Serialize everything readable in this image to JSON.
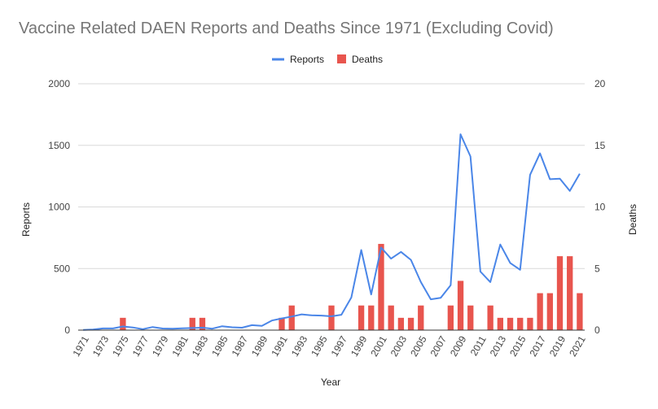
{
  "chart_data": {
    "type": "bar",
    "title": "Vaccine Related DAEN Reports and Deaths Since 1971 (Excluding Covid)",
    "xlabel": "Year",
    "ylabel_left": "Reports",
    "ylabel_right": "Deaths",
    "x_tick_labels": [
      "1971",
      "1973",
      "1975",
      "1977",
      "1979",
      "1981",
      "1983",
      "1985",
      "1987",
      "1989",
      "1991",
      "1993",
      "1995",
      "1997",
      "1999",
      "2001",
      "2003",
      "2005",
      "2007",
      "2009",
      "2011",
      "2013",
      "2015",
      "2017",
      "2019",
      "2021"
    ],
    "y_left": {
      "lim": [
        0,
        2000
      ],
      "ticks": [
        0,
        500,
        1000,
        1500,
        2000
      ]
    },
    "y_right": {
      "lim": [
        0,
        20
      ],
      "ticks": [
        0,
        5,
        10,
        15,
        20
      ]
    },
    "grid": true,
    "legend_position": "top",
    "categories": [
      1971,
      1972,
      1973,
      1974,
      1975,
      1976,
      1977,
      1978,
      1979,
      1980,
      1981,
      1982,
      1983,
      1984,
      1985,
      1986,
      1987,
      1988,
      1989,
      1990,
      1991,
      1992,
      1993,
      1994,
      1995,
      1996,
      1997,
      1998,
      1999,
      2000,
      2001,
      2002,
      2003,
      2004,
      2005,
      2006,
      2007,
      2008,
      2009,
      2010,
      2011,
      2012,
      2013,
      2014,
      2015,
      2016,
      2017,
      2018,
      2019,
      2020,
      2021
    ],
    "series": [
      {
        "name": "Reports",
        "kind": "line",
        "axis": "left",
        "color": "#4a86e8",
        "values": [
          2,
          5,
          14,
          14,
          30,
          22,
          8,
          25,
          13,
          12,
          15,
          17,
          20,
          12,
          32,
          23,
          20,
          40,
          35,
          78,
          95,
          110,
          128,
          120,
          118,
          112,
          125,
          265,
          650,
          290,
          670,
          580,
          635,
          570,
          390,
          250,
          262,
          365,
          1590,
          1410,
          475,
          390,
          695,
          545,
          490,
          1260,
          1435,
          1225,
          1230,
          1130,
          1270
        ]
      },
      {
        "name": "Deaths",
        "kind": "bar",
        "axis": "right",
        "color": "#e8554e",
        "values": [
          0,
          0,
          0,
          0,
          1,
          0,
          0,
          0,
          0,
          0,
          0,
          1,
          1,
          0,
          0,
          0,
          0,
          0,
          0,
          0,
          1,
          2,
          0,
          0,
          0,
          2,
          0,
          0,
          2,
          2,
          7,
          2,
          1,
          1,
          2,
          0,
          0,
          2,
          4,
          2,
          0,
          2,
          1,
          1,
          1,
          1,
          3,
          3,
          6,
          6,
          3
        ]
      }
    ]
  }
}
